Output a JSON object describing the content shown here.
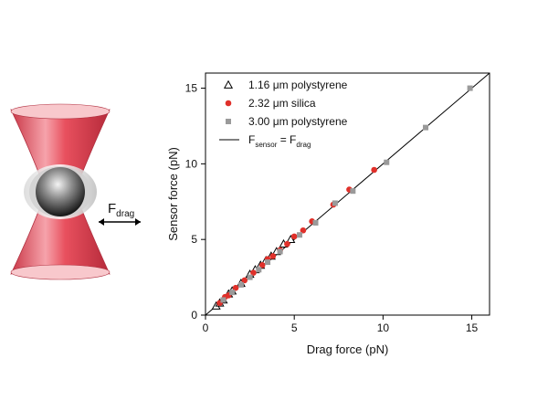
{
  "illustration": {
    "label_main": "F",
    "label_sub": "drag",
    "beam_color": "#e8505e",
    "bead_color": "#3a3a3a"
  },
  "chart_data": {
    "type": "scatter",
    "xlabel": "Drag force (pN)",
    "ylabel": "Sensor force (pN)",
    "xlim": [
      0,
      16
    ],
    "ylim": [
      0,
      16
    ],
    "xticks": [
      0,
      5,
      10,
      15
    ],
    "yticks": [
      0,
      5,
      10,
      15
    ],
    "grid": false,
    "legend_position": "top-left",
    "series": [
      {
        "name": "1.16 μm polystyrene",
        "marker": "open-triangle",
        "color": "#000000",
        "points": [
          [
            0.6,
            0.6
          ],
          [
            0.8,
            0.8
          ],
          [
            1.0,
            1.0
          ],
          [
            1.3,
            1.4
          ],
          [
            1.5,
            1.6
          ],
          [
            2.0,
            2.1
          ],
          [
            2.5,
            2.7
          ],
          [
            2.8,
            3.0
          ],
          [
            3.1,
            3.3
          ],
          [
            3.4,
            3.6
          ],
          [
            3.7,
            3.9
          ],
          [
            4.0,
            4.2
          ],
          [
            4.4,
            4.7
          ],
          [
            4.8,
            5.0
          ]
        ]
      },
      {
        "name": "2.32 μm silica",
        "marker": "filled-circle",
        "color": "#e0302a",
        "points": [
          [
            0.8,
            0.8
          ],
          [
            1.1,
            1.2
          ],
          [
            1.3,
            1.3
          ],
          [
            1.7,
            1.8
          ],
          [
            2.2,
            2.3
          ],
          [
            2.7,
            2.8
          ],
          [
            3.2,
            3.3
          ],
          [
            3.5,
            3.7
          ],
          [
            3.8,
            3.9
          ],
          [
            4.2,
            4.3
          ],
          [
            4.6,
            4.7
          ],
          [
            5.0,
            5.2
          ],
          [
            5.5,
            5.6
          ],
          [
            6.0,
            6.2
          ],
          [
            7.2,
            7.3
          ],
          [
            8.1,
            8.3
          ],
          [
            9.5,
            9.6
          ]
        ]
      },
      {
        "name": "3.00 μm polystyrene",
        "marker": "filled-square",
        "color": "#9a9a9a",
        "points": [
          [
            1.0,
            1.0
          ],
          [
            1.5,
            1.5
          ],
          [
            2.0,
            2.0
          ],
          [
            2.5,
            2.5
          ],
          [
            3.0,
            3.0
          ],
          [
            3.5,
            3.5
          ],
          [
            4.2,
            4.2
          ],
          [
            5.3,
            5.3
          ],
          [
            6.2,
            6.1
          ],
          [
            7.3,
            7.4
          ],
          [
            8.3,
            8.2
          ],
          [
            10.2,
            10.1
          ],
          [
            12.4,
            12.4
          ],
          [
            14.9,
            15.0
          ]
        ]
      }
    ],
    "reference_line": {
      "label_main": "F",
      "label_sub1": "sensor",
      "label_eq": " = F",
      "label_sub2": "drag",
      "color": "#000000"
    }
  }
}
